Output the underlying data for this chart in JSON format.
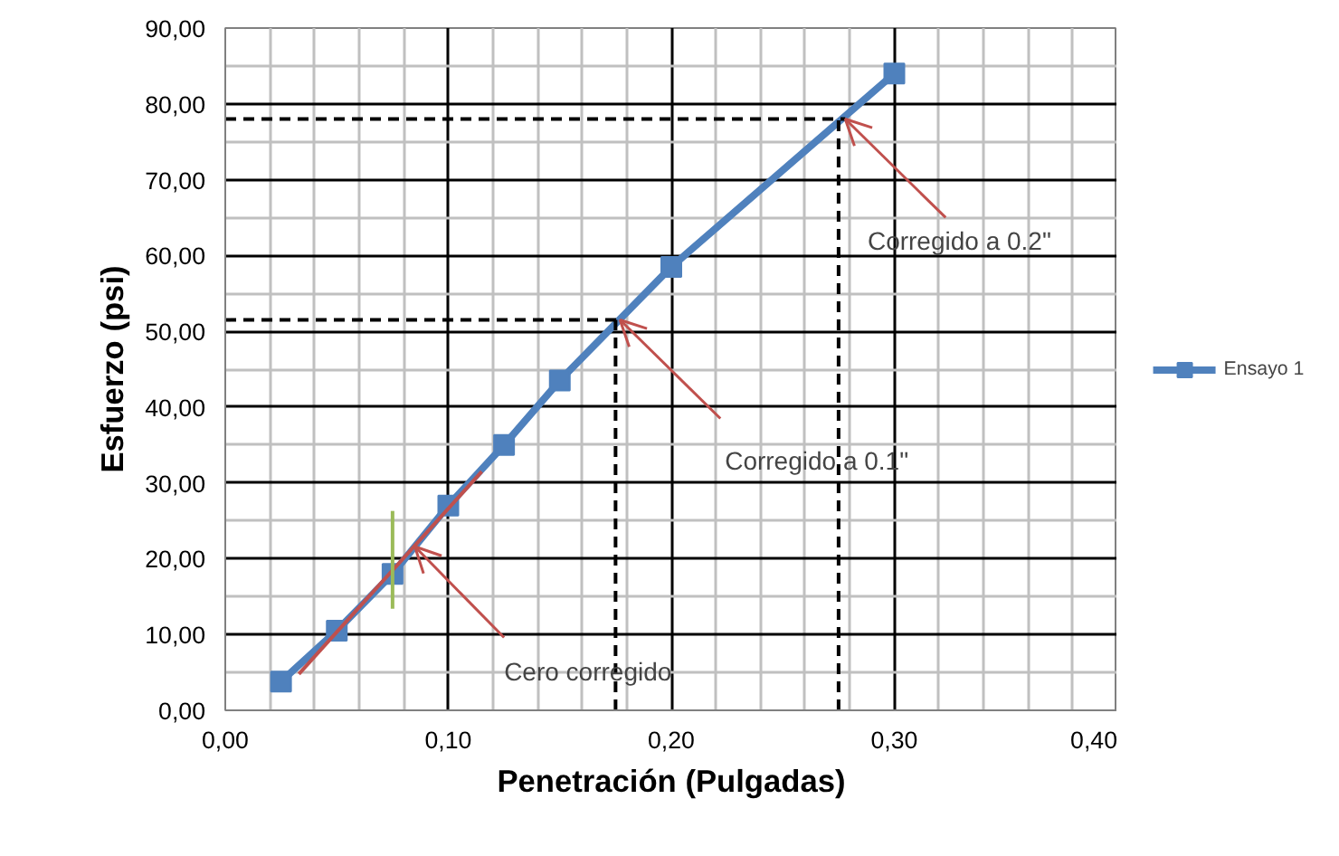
{
  "chart_data": {
    "type": "line",
    "xlabel": "Penetración (Pulgadas)",
    "ylabel": "Esfuerzo (psi)",
    "xlim": [
      0,
      0.4
    ],
    "ylim": [
      0,
      90
    ],
    "xticks": [
      {
        "value": 0,
        "label": "0,00"
      },
      {
        "value": 0.1,
        "label": "0,10"
      },
      {
        "value": 0.2,
        "label": "0,20"
      },
      {
        "value": 0.3,
        "label": "0,30"
      },
      {
        "value": 0.4,
        "label": "0,40"
      }
    ],
    "yticks": [
      {
        "value": 0,
        "label": "0,00"
      },
      {
        "value": 10,
        "label": "10,00"
      },
      {
        "value": 20,
        "label": "20,00"
      },
      {
        "value": 30,
        "label": "30,00"
      },
      {
        "value": 40,
        "label": "40,00"
      },
      {
        "value": 50,
        "label": "50,00"
      },
      {
        "value": 60,
        "label": "60,00"
      },
      {
        "value": 70,
        "label": "70,00"
      },
      {
        "value": 80,
        "label": "80,00"
      },
      {
        "value": 90,
        "label": "90,00"
      }
    ],
    "grid": true,
    "legend": "right",
    "series": [
      {
        "name": "Ensayo 1",
        "color": "#4f81bd",
        "marker": "square",
        "x": [
          0.025,
          0.05,
          0.075,
          0.1,
          0.125,
          0.15,
          0.2,
          0.3
        ],
        "values": [
          3.8,
          10.5,
          18,
          27,
          35,
          43.5,
          58.5,
          84
        ]
      },
      {
        "color": "#c0504d",
        "marker": "none",
        "x": [
          0.033,
          0.115
        ],
        "values": [
          4.8,
          31.5
        ]
      },
      {
        "color": "#9bbb59",
        "marker": "none",
        "x": [
          0.075,
          0.075
        ],
        "values": [
          13.4,
          26.3
        ]
      },
      {
        "color": "#000000",
        "marker": "none",
        "line_style": "dashed",
        "x": [
          0,
          0.177
        ],
        "values": [
          51.5,
          51.5
        ]
      },
      {
        "color": "#000000",
        "marker": "none",
        "line_style": "dashed",
        "x": [
          0.175,
          0.175
        ],
        "values": [
          0,
          51.5
        ]
      },
      {
        "color": "#000000",
        "marker": "none",
        "line_style": "dashed",
        "x": [
          0,
          0.278
        ],
        "values": [
          78,
          78
        ]
      },
      {
        "color": "#000000",
        "marker": "none",
        "line_style": "dashed",
        "x": [
          0.275,
          0.275
        ],
        "values": [
          0,
          78
        ]
      }
    ],
    "annotations": [
      {
        "text": "Cero corregido",
        "x": 0.085,
        "y": 21.6
      },
      {
        "text": "Corregido a 0.1\"",
        "x": 0.177,
        "y": 51.5
      },
      {
        "text": "Corregido a 0.2\"",
        "x": 0.278,
        "y": 78
      }
    ]
  }
}
